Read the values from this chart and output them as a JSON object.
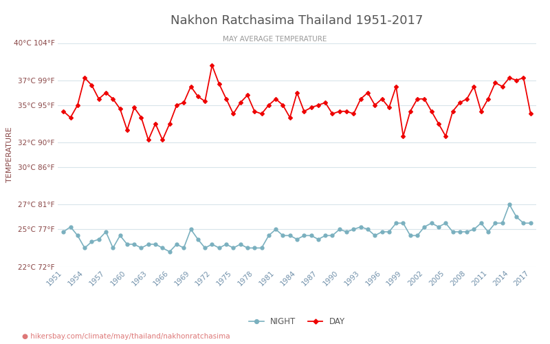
{
  "title": "Nakhon Ratchasima Thailand 1951-2017",
  "subtitle": "MAY AVERAGE TEMPERATURE",
  "ylabel": "TEMPERATURE",
  "footer": "hikersbay.com/climate/may/thailand/nakhonratchasima",
  "years": [
    1951,
    1952,
    1953,
    1954,
    1955,
    1956,
    1957,
    1958,
    1959,
    1960,
    1961,
    1962,
    1963,
    1964,
    1965,
    1966,
    1967,
    1968,
    1969,
    1970,
    1971,
    1972,
    1973,
    1974,
    1975,
    1976,
    1977,
    1978,
    1979,
    1980,
    1981,
    1982,
    1983,
    1984,
    1985,
    1986,
    1987,
    1988,
    1989,
    1990,
    1991,
    1992,
    1993,
    1994,
    1995,
    1996,
    1997,
    1998,
    1999,
    2000,
    2001,
    2002,
    2003,
    2004,
    2005,
    2006,
    2007,
    2008,
    2009,
    2010,
    2011,
    2012,
    2013,
    2014,
    2015,
    2016,
    2017
  ],
  "day_temps": [
    34.5,
    34.0,
    35.0,
    37.2,
    36.6,
    35.5,
    36.0,
    35.5,
    34.7,
    33.0,
    34.8,
    34.0,
    32.2,
    33.5,
    32.2,
    33.5,
    35.0,
    35.2,
    36.5,
    35.7,
    35.3,
    38.2,
    36.7,
    35.5,
    34.3,
    35.2,
    35.8,
    34.5,
    34.3,
    35.0,
    35.5,
    35.0,
    34.0,
    36.0,
    34.5,
    34.8,
    35.0,
    35.2,
    34.3,
    34.5,
    34.5,
    34.3,
    35.5,
    36.0,
    35.0,
    35.5,
    34.8,
    36.5,
    32.5,
    34.5,
    35.5,
    35.5,
    34.5,
    33.5,
    32.5,
    34.5,
    35.2,
    35.5,
    36.5,
    34.5,
    35.5,
    36.8,
    36.5,
    37.2,
    37.0,
    37.2,
    34.3
  ],
  "night_temps": [
    24.8,
    25.2,
    24.5,
    23.5,
    24.0,
    24.2,
    24.8,
    23.5,
    24.5,
    23.8,
    23.8,
    23.5,
    23.8,
    23.8,
    23.5,
    23.2,
    23.8,
    23.5,
    25.0,
    24.2,
    23.5,
    23.8,
    23.5,
    23.8,
    23.5,
    23.8,
    23.5,
    23.5,
    23.5,
    24.5,
    25.0,
    24.5,
    24.5,
    24.2,
    24.5,
    24.5,
    24.2,
    24.5,
    24.5,
    25.0,
    24.8,
    25.0,
    25.2,
    25.0,
    24.5,
    24.8,
    24.8,
    25.5,
    25.5,
    24.5,
    24.5,
    25.2,
    25.5,
    25.2,
    25.5,
    24.8,
    24.8,
    24.8,
    25.0,
    25.5,
    24.8,
    25.5,
    25.5,
    27.0,
    26.0,
    25.5,
    25.5
  ],
  "ylim_min": 22,
  "ylim_max": 40,
  "yticks_c": [
    22,
    25,
    27,
    30,
    32,
    35,
    37,
    40
  ],
  "yticks_f": [
    72,
    77,
    81,
    86,
    90,
    95,
    99,
    104
  ],
  "day_color": "#ee0000",
  "night_color": "#7ab0bf",
  "grid_color": "#d8e4ea",
  "title_color": "#555555",
  "subtitle_color": "#999999",
  "ylabel_color": "#884444",
  "ytick_color": "#884444",
  "xtick_color": "#7090aa",
  "bg_color": "#ffffff",
  "legend_night": "NIGHT",
  "legend_day": "DAY",
  "footer_color": "#dd7777",
  "footer_pin_color": "#e8a020"
}
